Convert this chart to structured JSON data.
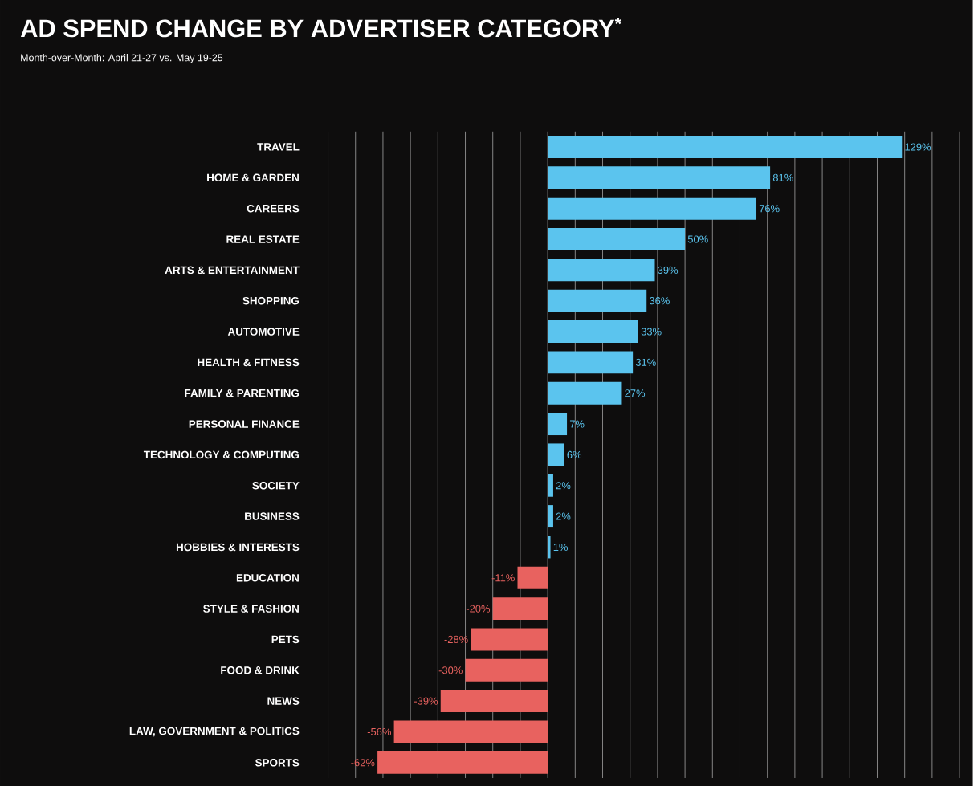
{
  "chart_data": {
    "type": "bar",
    "orientation": "horizontal",
    "title": "AD SPEND CHANGE BY ADVERTISER CATEGORY$^{*}$",
    "subtitle": "Month-over-Month: April 21-27 vs. May 19-25",
    "categories": [
      "TRAVEL",
      "HOME & GARDEN",
      "CAREERS",
      "REAL ESTATE",
      "ARTS & ENTERTAINMENT",
      "SHOPPING",
      "AUTOMOTIVE",
      "HEALTH & FITNESS",
      "FAMILY & PARENTING",
      "PERSONAL FINANCE",
      "TECHNOLOGY & COMPUTING",
      "SOCIETY",
      "BUSINESS",
      "HOBBIES & INTERESTS",
      "EDUCATION",
      "STYLE & FASHION",
      "PETS",
      "FOOD & DRINK",
      "NEWS",
      "LAW, GOVERNMENT & POLITICS",
      "SPORTS"
    ],
    "values": [
      129,
      81,
      76,
      50,
      39,
      36,
      33,
      31,
      27,
      7,
      6,
      2,
      2,
      1,
      -11,
      -20,
      -28,
      -30,
      -39,
      -56,
      -62
    ],
    "value_labels": [
      "129%",
      "81%",
      "76%",
      "50%",
      "39%",
      "36%",
      "33%",
      "31%",
      "27%",
      "7%",
      "6%",
      "2%",
      "2%",
      "1%",
      "-11%",
      "-20%",
      "-28%",
      "-30%",
      "-39%",
      "-56%",
      "-62%"
    ],
    "colors": [
      "#5bc4ee",
      "#5bc4ee",
      "#5bc4ee",
      "#5bc4ee",
      "#5bc4ee",
      "#5bc4ee",
      "#5bc4ee",
      "#5bc4ee",
      "#5bc4ee",
      "#5bc4ee",
      "#5bc4ee",
      "#5bc4ee",
      "#5bc4ee",
      "#5bc4ee",
      "#e8625f",
      "#e8625f",
      "#e8625f",
      "#e8625f",
      "#e8625f",
      "#e8625f",
      "#e8625f"
    ],
    "grid": "x"
  }
}
